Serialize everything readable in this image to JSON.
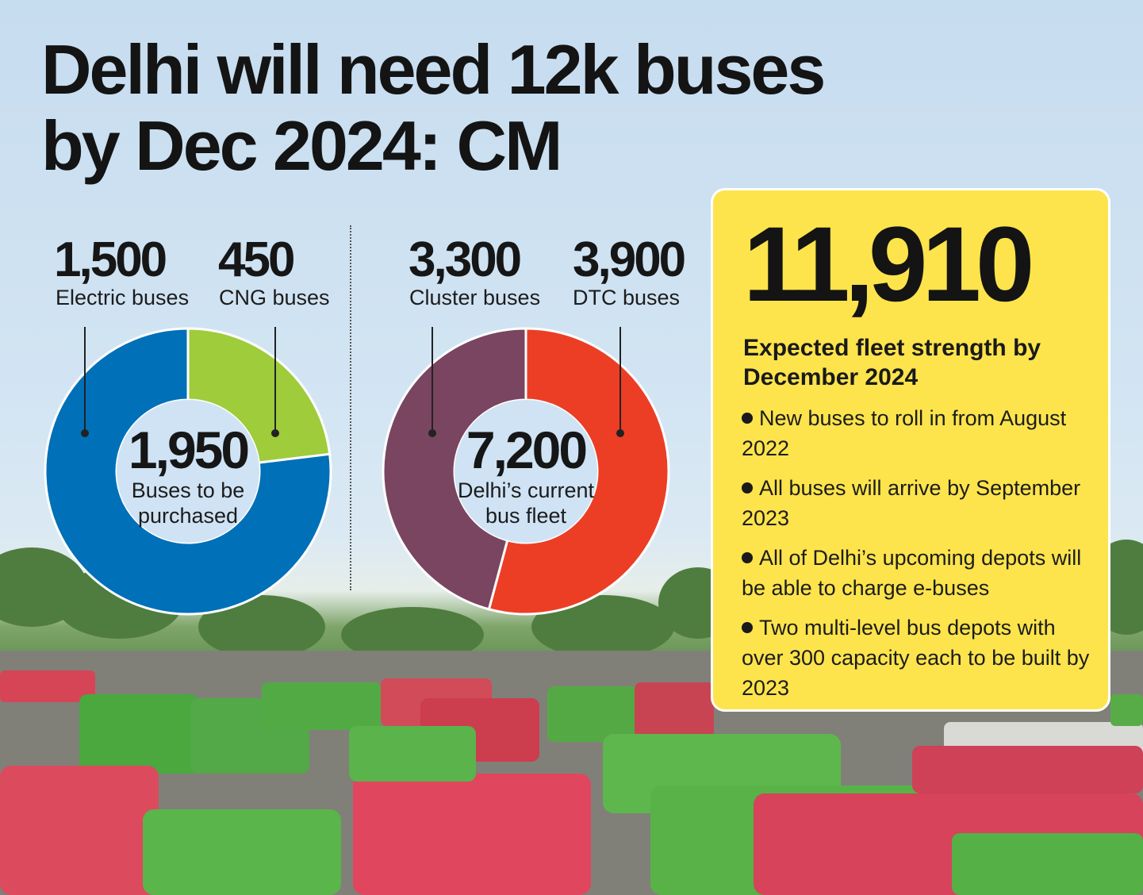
{
  "headline": "Delhi will need 12k buses by Dec 2024: CM",
  "chart_data": [
    {
      "type": "pie",
      "categories": [
        "Electric buses",
        "CNG buses"
      ],
      "values": [
        1500,
        450
      ],
      "value_labels": [
        "1,500",
        "450"
      ],
      "center_value": "1,950",
      "center_label": "Buses to be purchased",
      "colors": [
        "#0070b8",
        "#9ecc3b"
      ]
    },
    {
      "type": "pie",
      "categories": [
        "Cluster buses",
        "DTC buses"
      ],
      "values": [
        3300,
        3900
      ],
      "value_labels": [
        "3,300",
        "3,900"
      ],
      "center_value": "7,200",
      "center_label": "Delhi’s current bus fleet",
      "colors": [
        "#7a4560",
        "#ec3e25"
      ]
    }
  ],
  "panel": {
    "value": "11,910",
    "subtitle": "Expected fleet strength by December 2024",
    "bullets": [
      "New buses to roll in from August 2022",
      "All buses will arrive by September 2023",
      "All of Delhi’s upcoming depots will be able to charge e-buses",
      "Two multi-level bus depots with over 300 capacity each to be built by 2023"
    ],
    "color": "#fde44c"
  }
}
